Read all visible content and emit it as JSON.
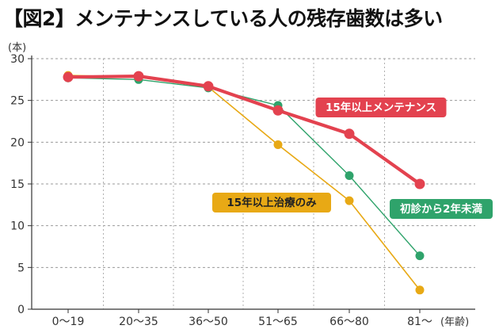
{
  "title": "【図2】メンテナンスしている人の残存歯数は多い",
  "chart_data": {
    "type": "line",
    "y_unit": "(本)",
    "x_unit": "(年齢)",
    "categories": [
      "0〜19",
      "20〜35",
      "36〜50",
      "51〜65",
      "66〜80",
      "81〜"
    ],
    "ylim": [
      0,
      30
    ],
    "yticks": [
      0,
      5,
      10,
      15,
      20,
      25,
      30
    ],
    "grid": true,
    "series": [
      {
        "name": "15年以上治療のみ",
        "color": "#e8a915",
        "text_color": "#222222",
        "values": [
          28.0,
          27.8,
          26.6,
          19.7,
          13.0,
          2.3
        ]
      },
      {
        "name": "初診から2年未満",
        "color": "#2fa36b",
        "text_color": "#ffffff",
        "values": [
          27.7,
          27.5,
          26.5,
          24.4,
          16.0,
          6.4
        ]
      },
      {
        "name": "15年以上メンテナンス",
        "color": "#e3424f",
        "text_color": "#ffffff",
        "values": [
          27.8,
          27.9,
          26.7,
          23.8,
          21.0,
          15.0
        ]
      }
    ]
  }
}
